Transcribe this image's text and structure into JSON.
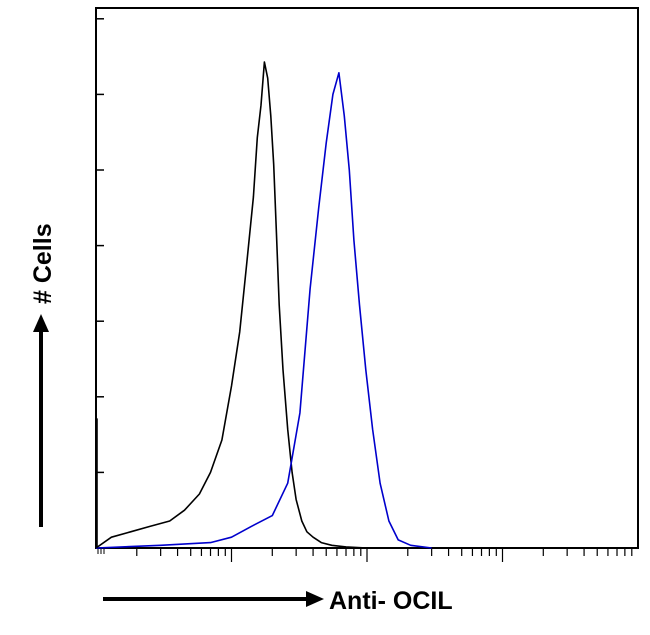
{
  "chart_data": {
    "type": "line",
    "title": "",
    "xlabel": "Anti- OCIL",
    "ylabel": "# Cells",
    "x_scale": "log",
    "xlim": [
      1,
      10000
    ],
    "ylim": [
      0,
      100
    ],
    "grid": false,
    "legend": "none",
    "series": [
      {
        "color": "#000000",
        "x": [
          1,
          1.3,
          1.8,
          2.5,
          3.5,
          4.5,
          5.8,
          7,
          8.5,
          10,
          11.5,
          13,
          14.5,
          15.5,
          16.5,
          17.5,
          18.5,
          19.5,
          20.5,
          21.5,
          22.5,
          24,
          26,
          28,
          30,
          33,
          36,
          40,
          46,
          55,
          70,
          100
        ],
        "y": [
          0,
          2,
          3,
          4,
          5,
          7,
          10,
          14,
          20,
          30,
          40,
          53,
          65,
          76,
          82,
          90,
          87,
          80,
          71,
          58,
          45,
          33,
          22,
          14,
          9,
          5,
          3,
          2,
          1,
          0.5,
          0.2,
          0
        ]
      },
      {
        "color": "#0000cc",
        "x": [
          1,
          3,
          7,
          10,
          14,
          20,
          26,
          32,
          38,
          44,
          50,
          56,
          62,
          68,
          74,
          80,
          88,
          98,
          110,
          125,
          145,
          170,
          210,
          300
        ],
        "y": [
          0,
          0.5,
          1,
          2,
          4,
          6,
          12,
          25,
          48,
          63,
          75,
          84,
          88,
          80,
          70,
          57,
          45,
          33,
          22,
          12,
          5,
          1.5,
          0.5,
          0
        ]
      }
    ]
  }
}
